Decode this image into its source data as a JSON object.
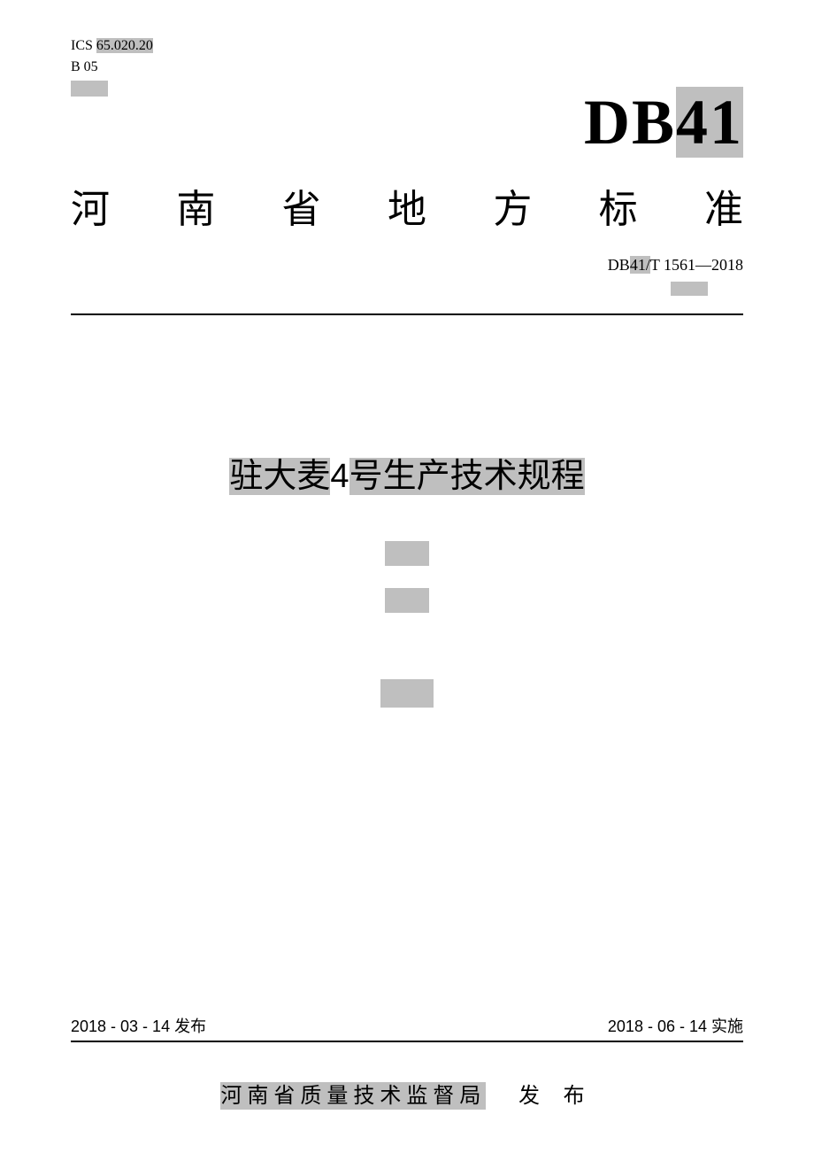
{
  "header": {
    "ics_label": "ICS",
    "ics_code": "65.020.20",
    "b_code": "B 05"
  },
  "logo": {
    "prefix": "DB",
    "number": "41"
  },
  "province_title": {
    "chars": [
      "河",
      "南",
      "省",
      "地",
      "方",
      "标",
      "准"
    ]
  },
  "standard_number": {
    "prefix": "DB",
    "middle": "41",
    "slash": "/",
    "suffix": "T 1561",
    "dash": "—",
    "year": "2018"
  },
  "main_title": {
    "part1": "驻大麦",
    "part2": "4",
    "part3": "号生产技术规程"
  },
  "dates": {
    "issue": "2018 - 03 - 14 发布",
    "effective": "2018 - 06 - 14 实施"
  },
  "publisher": {
    "name": "河南省质量技术监督局",
    "action": "发 布"
  },
  "colors": {
    "highlight": "#bfbfbf",
    "text": "#000000",
    "background": "#ffffff"
  }
}
